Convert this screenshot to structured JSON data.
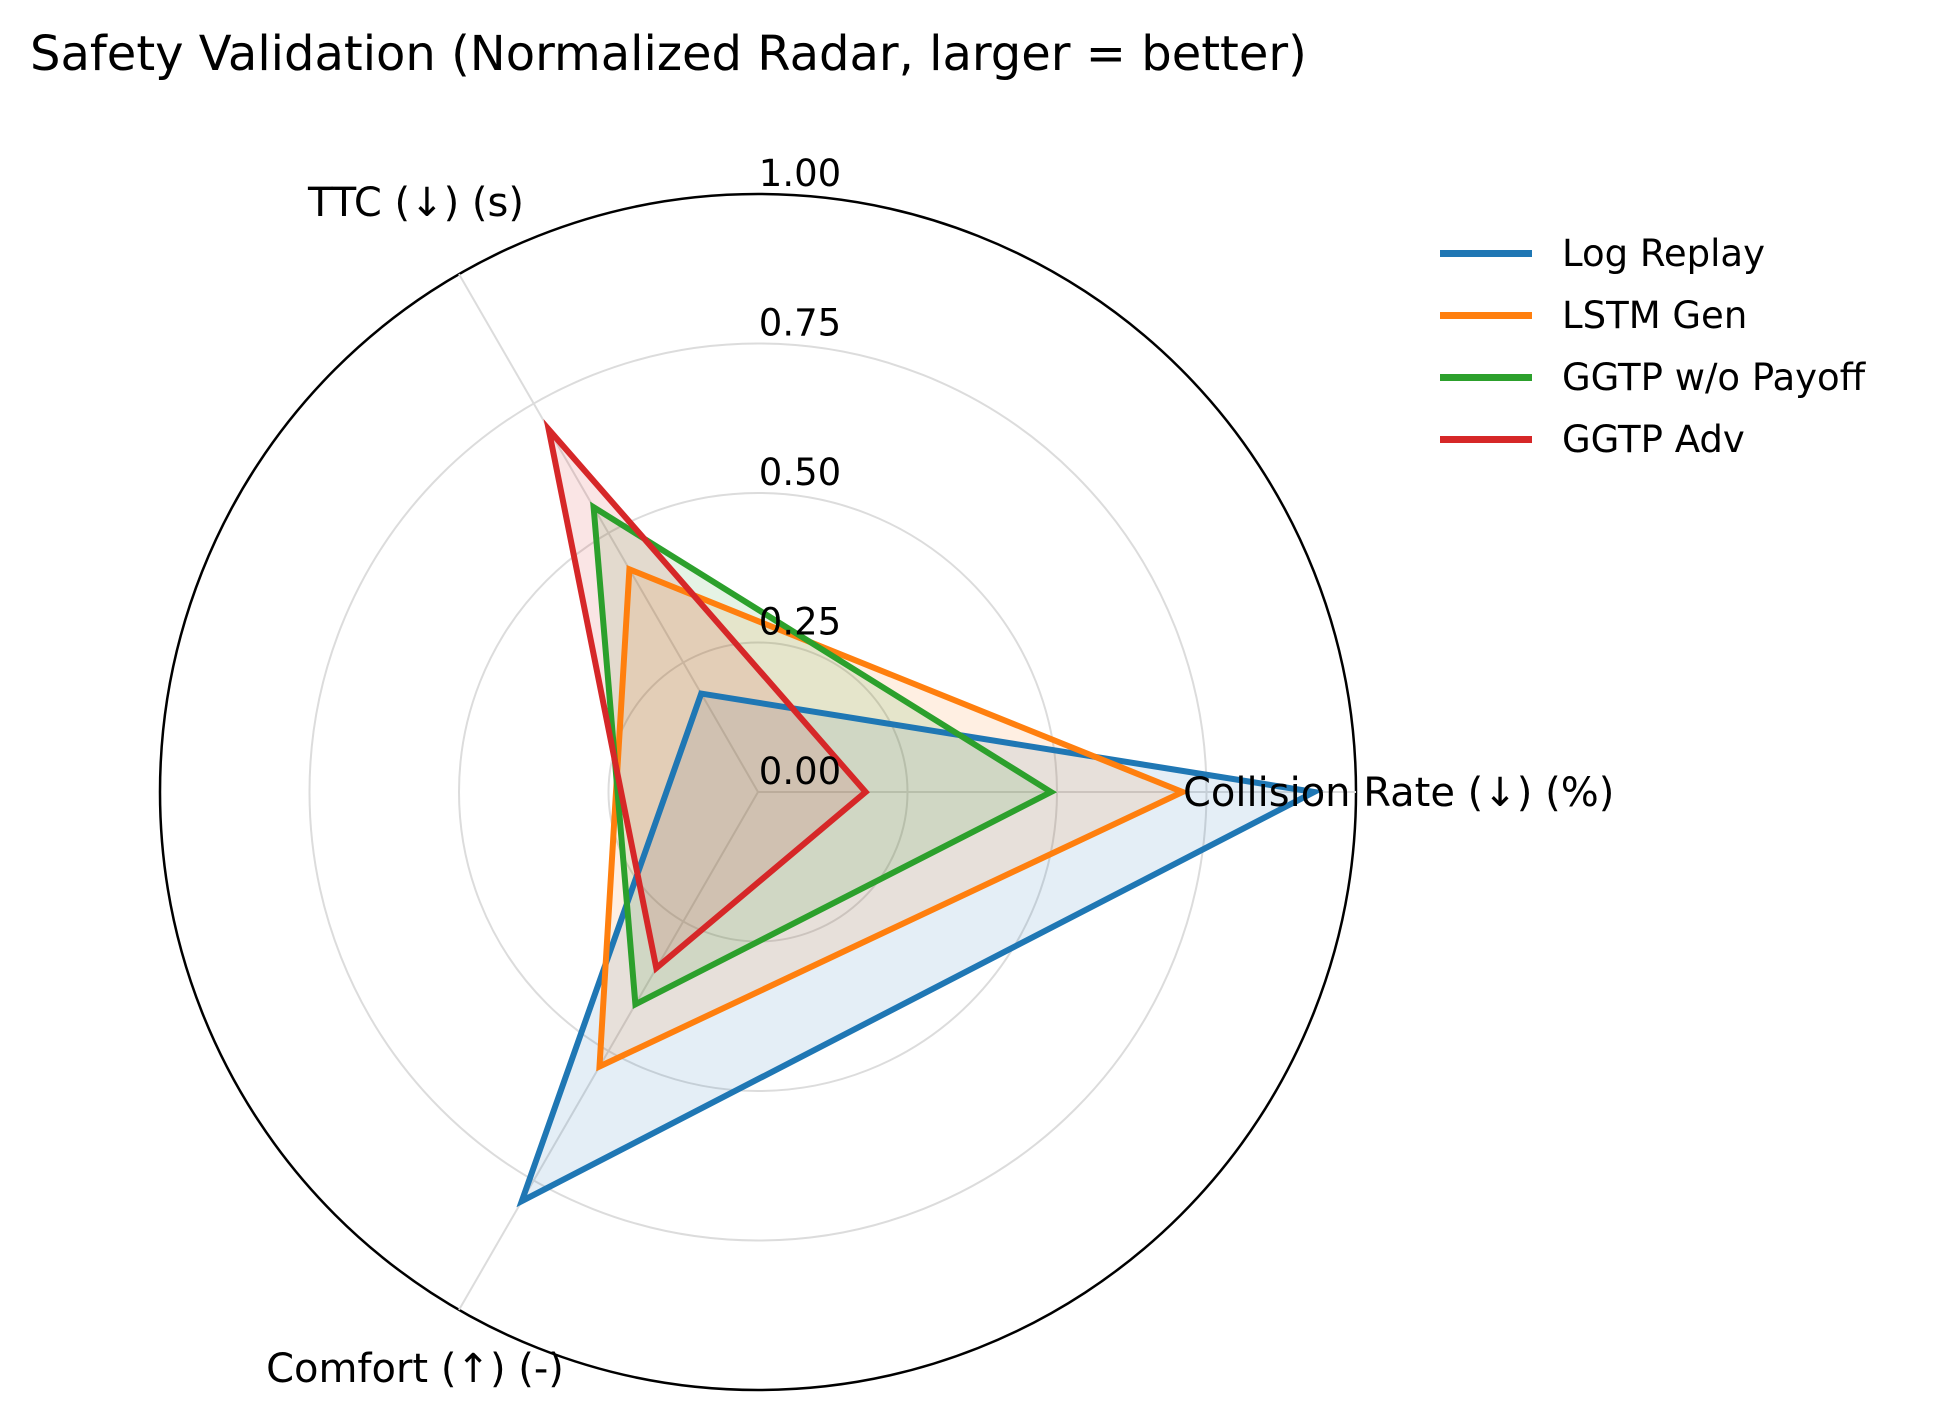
{
  "chart_data": {
    "type": "radar",
    "title": "Safety Validation (Normalized Radar, larger = better)",
    "axes": [
      "Collision Rate (↓) (%)",
      "TTC (↓) (s)",
      "Comfort (↑) (-)"
    ],
    "rlim": [
      0,
      1
    ],
    "rticks": [
      0,
      0.25,
      0.5,
      0.75,
      1.0
    ],
    "rtick_labels": [
      "0.00",
      "0.25",
      "0.50",
      "0.75",
      "1.00"
    ],
    "grid": true,
    "legend_position": "top-right",
    "series": [
      {
        "name": "Log Replay",
        "values": [
          0.93,
          0.19,
          0.79
        ],
        "color": "#1f77b4"
      },
      {
        "name": "LSTM Gen",
        "values": [
          0.71,
          0.43,
          0.53
        ],
        "color": "#ff7f0e"
      },
      {
        "name": "GGTP w/o Payoff",
        "values": [
          0.49,
          0.55,
          0.41
        ],
        "color": "#2ca02c"
      },
      {
        "name": "GGTP Adv",
        "values": [
          0.18,
          0.7,
          0.34
        ],
        "color": "#d62728"
      }
    ]
  }
}
